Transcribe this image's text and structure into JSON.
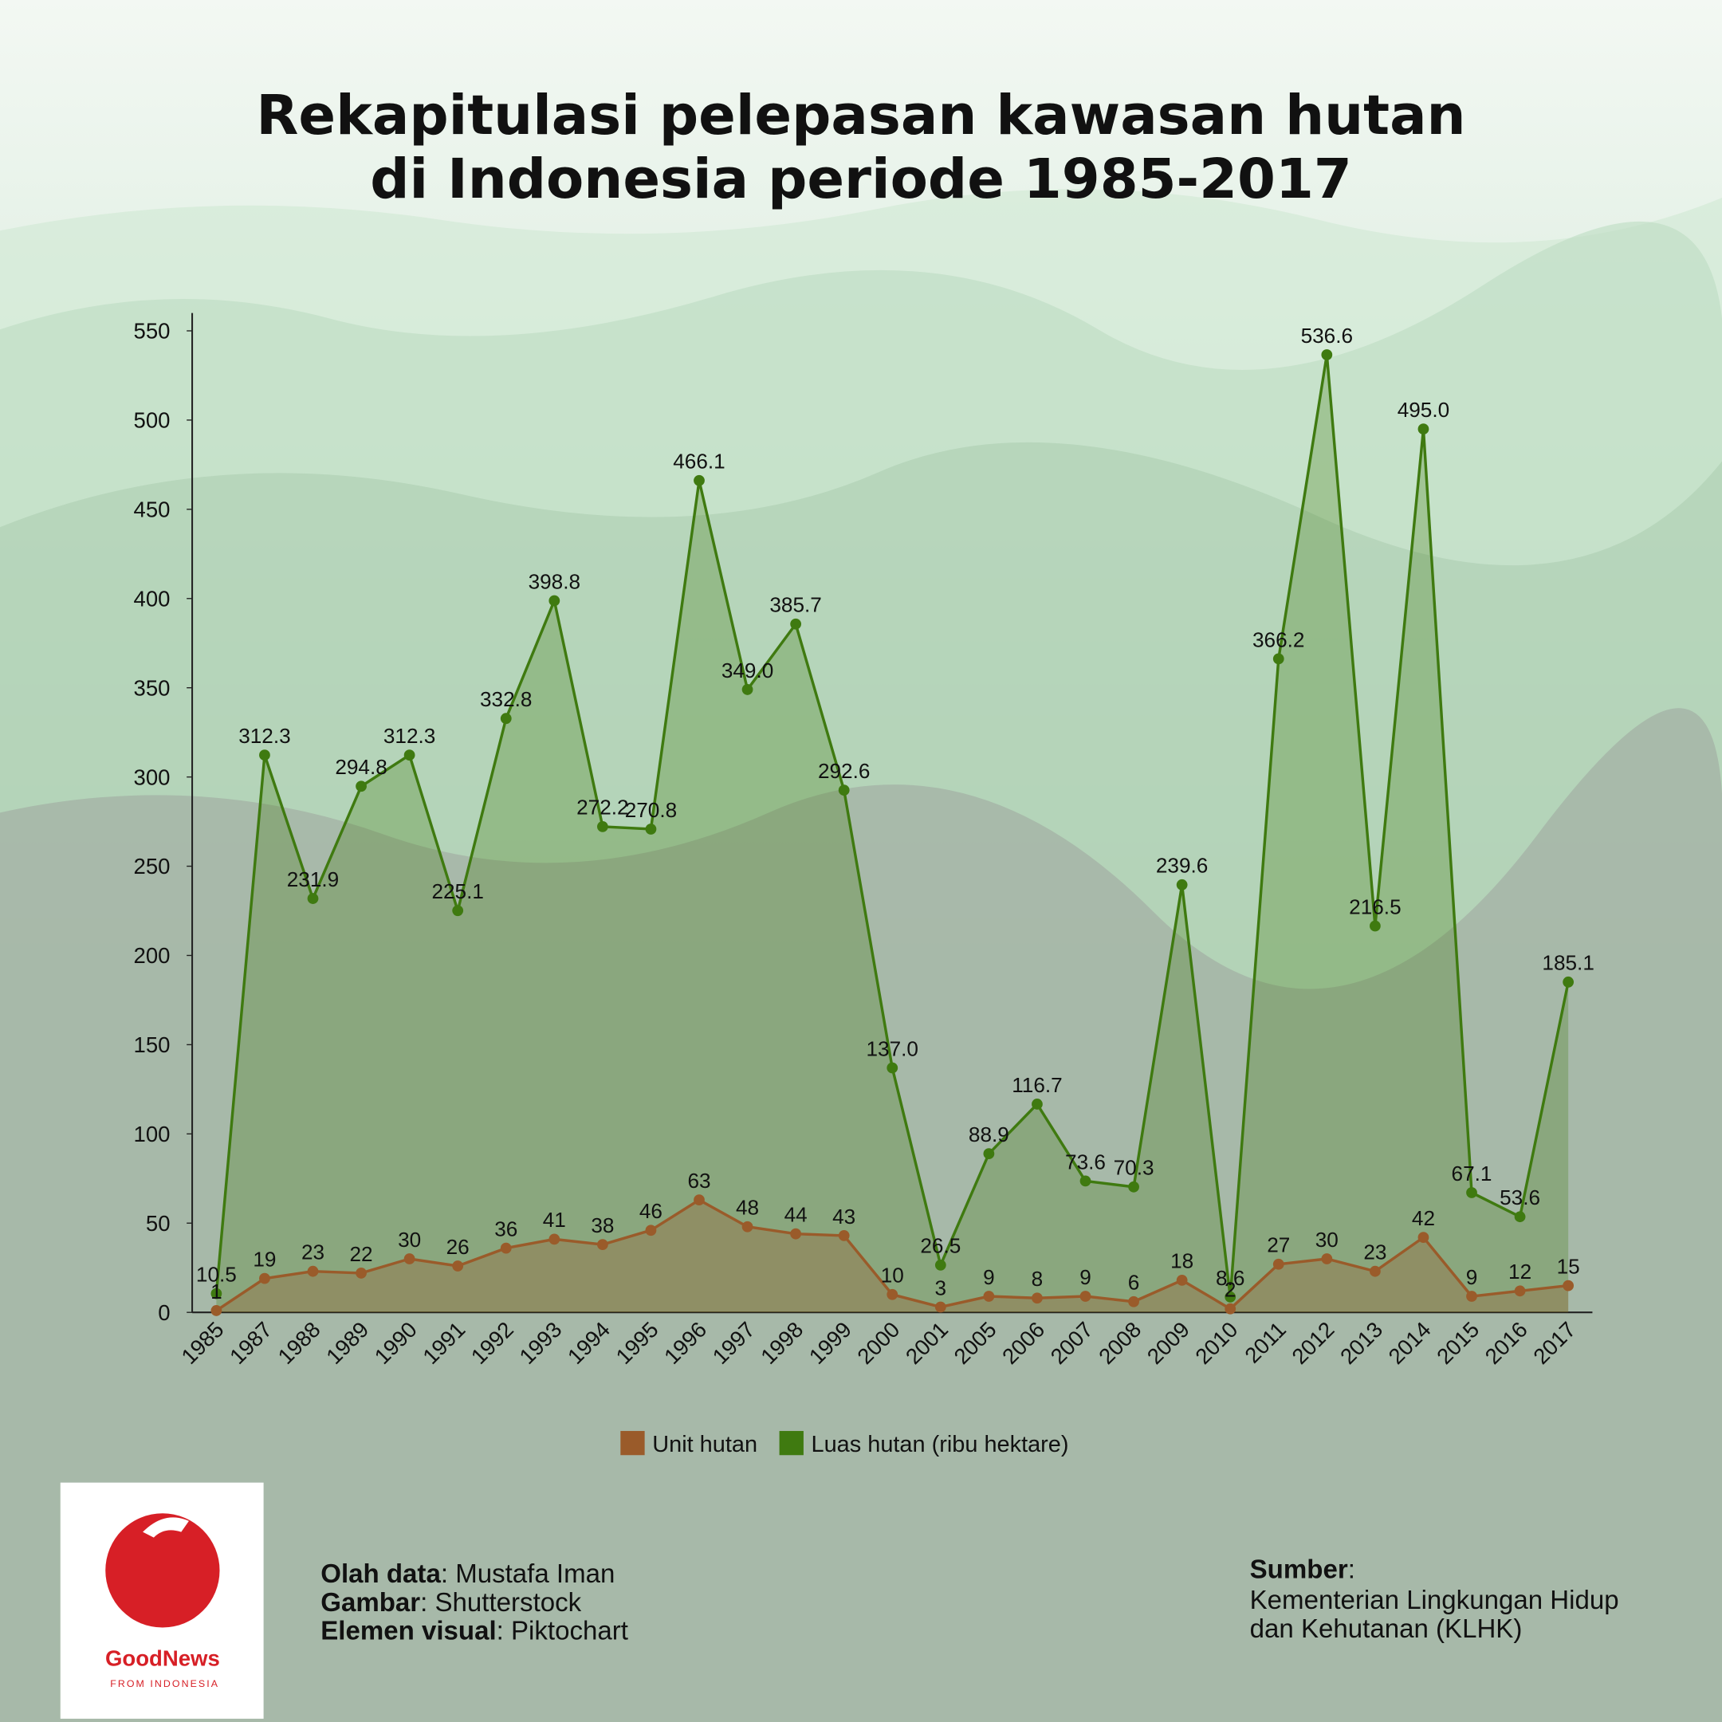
{
  "chart_data": {
    "type": "line",
    "title": [
      "Rekapitulasi pelepasan kawasan hutan",
      "di Indonesia periode 1985-2017"
    ],
    "categories": [
      "1985",
      "1987",
      "1988",
      "1989",
      "1990",
      "1991",
      "1992",
      "1993",
      "1994",
      "1995",
      "1996",
      "1997",
      "1998",
      "1999",
      "2000",
      "2001",
      "2005",
      "2006",
      "2007",
      "2008",
      "2009",
      "2010",
      "2011",
      "2012",
      "2013",
      "2014",
      "2015",
      "2016",
      "2017"
    ],
    "series": [
      {
        "name": "Unit hutan",
        "color": "#9a5b2a",
        "values": [
          1,
          19,
          23,
          22,
          30,
          26,
          36,
          41,
          38,
          46,
          63,
          48,
          44,
          43,
          10,
          3,
          9,
          8,
          9,
          6,
          18,
          2,
          27,
          30,
          23,
          42,
          9,
          12,
          15
        ]
      },
      {
        "name": "Luas hutan (ribu hektare)",
        "color": "#3f7a10",
        "values": [
          10.5,
          312.3,
          231.9,
          294.8,
          312.3,
          225.1,
          332.8,
          398.8,
          272.2,
          270.8,
          466.1,
          349.0,
          385.7,
          292.6,
          137.0,
          26.5,
          88.9,
          116.7,
          73.6,
          70.3,
          239.6,
          8.6,
          366.2,
          536.6,
          216.5,
          495.0,
          67.1,
          53.6,
          185.1
        ],
        "value_labels": [
          "10.5",
          "312.3",
          "231.9",
          "294.8",
          "312.3",
          "225.1",
          "332.8",
          "398.8",
          "272.2",
          "270.8",
          "466.1",
          "349.0",
          "385.7",
          "292.6",
          "137.0",
          "26.5",
          "88.9",
          "116.7",
          "73.6",
          "70.3",
          "239.6",
          "8.6",
          "366.2",
          "536.6",
          "216.5",
          "495.0",
          "67.1",
          "53.6",
          "185.1"
        ]
      }
    ],
    "ylim": [
      0,
      560
    ],
    "yticks": [
      0,
      50,
      100,
      150,
      200,
      250,
      300,
      350,
      400,
      450,
      500,
      550
    ],
    "legend": "bottom"
  },
  "credits": [
    {
      "label": "Olah data",
      "text": ": Mustafa Iman"
    },
    {
      "label": "Gambar",
      "text": ": Shutterstock"
    },
    {
      "label": "Elemen visual",
      "text": ": Piktochart"
    }
  ],
  "source": {
    "label": "Sumber",
    "text": ":",
    "lines": [
      "Kementerian Lingkungan Hidup",
      "dan Kehutanan (KLHK)"
    ]
  },
  "logo": {
    "name": "GoodNews",
    "tagline": "FROM INDONESIA"
  }
}
